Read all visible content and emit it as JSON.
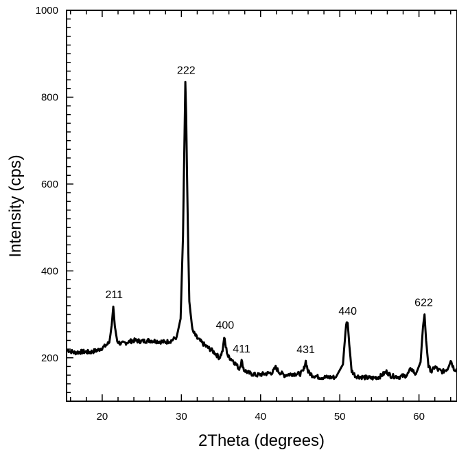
{
  "chart_data": {
    "type": "line",
    "title": "",
    "xlabel": "2Theta (degrees)",
    "ylabel": "Intensity (cps)",
    "xlim": [
      15.5,
      64.8
    ],
    "ylim": [
      100,
      1000
    ],
    "x_ticks": [
      20,
      30,
      40,
      50,
      60
    ],
    "y_ticks": [
      200,
      400,
      600,
      800,
      1000
    ],
    "x_tick_labels": [
      "20",
      "30",
      "40",
      "50",
      "60"
    ],
    "y_tick_labels": [
      "200",
      "400",
      "600",
      "800",
      "1000"
    ],
    "grid": false,
    "line_color": "#000000",
    "series": [
      {
        "x": [
          15.6,
          16.5,
          17.5,
          18.5,
          19.5,
          20.3,
          20.9,
          21.2,
          21.4,
          21.6,
          21.9,
          22.4,
          23.0,
          24.0,
          25.0,
          26.0,
          27.0,
          28.0,
          28.8,
          29.4,
          29.9,
          30.2,
          30.4,
          30.5,
          30.6,
          30.8,
          31.0,
          31.4,
          32.0,
          33.0,
          34.0,
          34.8,
          35.2,
          35.4,
          35.6,
          35.9,
          36.5,
          37.3,
          37.6,
          37.9,
          38.5,
          39.5,
          40.5,
          41.5,
          41.9,
          42.3,
          43.0,
          44.0,
          45.0,
          45.4,
          45.7,
          46.0,
          46.5,
          47.5,
          48.5,
          49.5,
          50.4,
          50.8,
          51.0,
          51.2,
          51.5,
          52.0,
          53.0,
          54.0,
          55.0,
          55.9,
          56.5,
          57.5,
          58.5,
          59.0,
          59.6,
          60.2,
          60.5,
          60.7,
          60.9,
          61.2,
          61.6,
          62.0,
          62.4,
          63.0,
          63.6,
          64.0,
          64.4,
          64.8
        ],
        "y": [
          218,
          212,
          214,
          213,
          218,
          226,
          235,
          275,
          318,
          272,
          238,
          232,
          235,
          240,
          238,
          240,
          238,
          236,
          240,
          248,
          290,
          480,
          720,
          835,
          760,
          520,
          330,
          262,
          245,
          228,
          215,
          200,
          215,
          248,
          225,
          203,
          194,
          175,
          193,
          172,
          165,
          160,
          163,
          166,
          178,
          168,
          160,
          163,
          163,
          170,
          192,
          168,
          160,
          155,
          155,
          155,
          185,
          278,
          280,
          230,
          170,
          158,
          155,
          153,
          156,
          168,
          158,
          156,
          160,
          175,
          162,
          190,
          270,
          300,
          240,
          180,
          168,
          180,
          172,
          168,
          175,
          195,
          175,
          172
        ]
      }
    ],
    "annotations": [
      {
        "text": "211",
        "x": 21.5,
        "y": 318
      },
      {
        "text": "222",
        "x": 30.6,
        "y": 835
      },
      {
        "text": "400",
        "x": 35.5,
        "y": 248
      },
      {
        "text": "411",
        "x": 37.6,
        "y": 193
      },
      {
        "text": "431",
        "x": 45.7,
        "y": 192
      },
      {
        "text": "440",
        "x": 51.0,
        "y": 280
      },
      {
        "text": "622",
        "x": 60.6,
        "y": 300
      }
    ]
  }
}
